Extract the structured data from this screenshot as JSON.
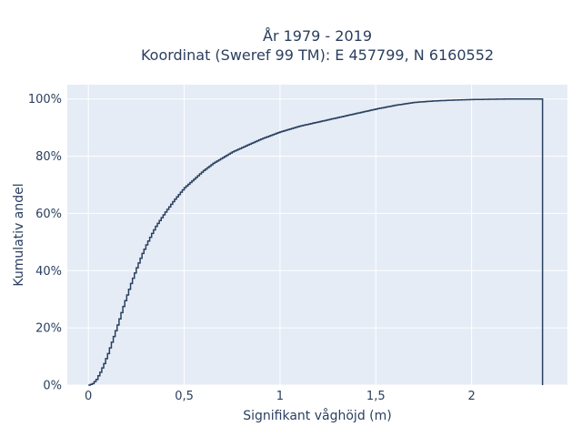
{
  "chart_data": {
    "type": "line",
    "line_shape": "step",
    "title_line1": "År 1979 - 2019",
    "title_line2": "Koordinat (Sweref 99 TM): E 457799, N 6160552",
    "xlabel": "Signifikant våghöjd (m)",
    "ylabel": "Kumulativ andel",
    "xlim": [
      -0.11,
      2.5
    ],
    "ylim": [
      0,
      1.05
    ],
    "x_ticks": [
      {
        "value": 0,
        "label": "0"
      },
      {
        "value": 0.5,
        "label": "0,5"
      },
      {
        "value": 1,
        "label": "1"
      },
      {
        "value": 1.5,
        "label": "1,5"
      },
      {
        "value": 2,
        "label": "2"
      }
    ],
    "y_ticks": [
      {
        "value": 0,
        "label": "0%"
      },
      {
        "value": 0.2,
        "label": "20%"
      },
      {
        "value": 0.4,
        "label": "40%"
      },
      {
        "value": 0.6,
        "label": "60%"
      },
      {
        "value": 0.8,
        "label": "80%"
      },
      {
        "value": 1.0,
        "label": "100%"
      }
    ],
    "grid": true,
    "colors": {
      "plot_bg": "#e5ecf6",
      "grid": "#ffffff",
      "line": "#2a3f5f"
    },
    "series": [
      {
        "x": [
          0.0,
          0.02,
          0.04,
          0.06,
          0.08,
          0.1,
          0.12,
          0.15,
          0.18,
          0.2,
          0.22,
          0.25,
          0.28,
          0.3,
          0.33,
          0.35,
          0.38,
          0.4,
          0.45,
          0.5,
          0.55,
          0.6,
          0.65,
          0.7,
          0.75,
          0.8,
          0.9,
          1.0,
          1.1,
          1.2,
          1.3,
          1.4,
          1.5,
          1.6,
          1.7,
          1.8,
          1.9,
          2.0,
          2.1,
          2.2,
          2.3,
          2.37,
          2.37
        ],
        "y": [
          0.0,
          0.005,
          0.02,
          0.045,
          0.075,
          0.11,
          0.15,
          0.21,
          0.275,
          0.315,
          0.355,
          0.41,
          0.46,
          0.49,
          0.53,
          0.555,
          0.585,
          0.605,
          0.65,
          0.69,
          0.72,
          0.75,
          0.775,
          0.795,
          0.815,
          0.83,
          0.86,
          0.885,
          0.905,
          0.92,
          0.935,
          0.95,
          0.965,
          0.978,
          0.988,
          0.993,
          0.996,
          0.998,
          0.999,
          1.0,
          1.0,
          1.0,
          0.0
        ]
      }
    ]
  }
}
